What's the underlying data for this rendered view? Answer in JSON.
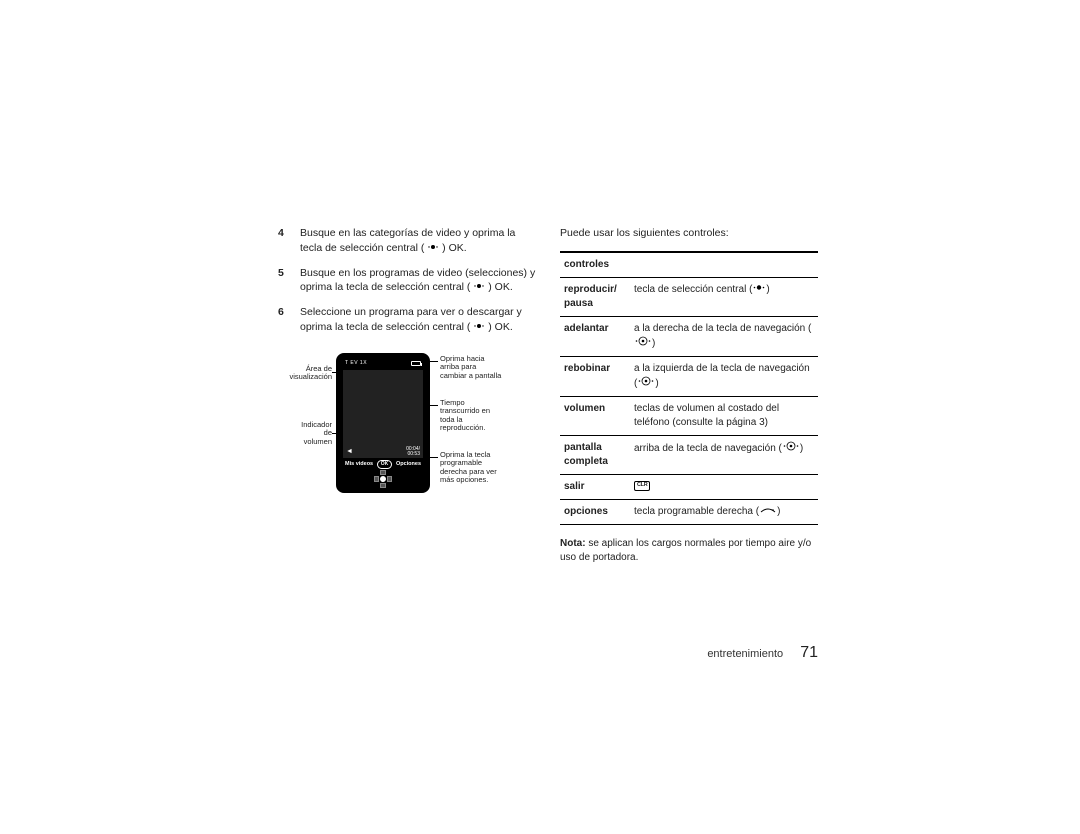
{
  "steps": [
    {
      "num": "4",
      "text_a": "Busque en las categorías de video y oprima la tecla de selección central (",
      "text_b": ") OK."
    },
    {
      "num": "5",
      "text_a": "Busque en los programas de video (selecciones) y oprima la tecla de selección central (",
      "text_b": ") OK."
    },
    {
      "num": "6",
      "text_a": "Seleccione un programa para ver o descargar y oprima la tecla de selección central (",
      "text_b": ") OK."
    }
  ],
  "diagram": {
    "status_left": "T EV 1X",
    "softkey_left": "Mis videos",
    "softkey_center": "OK",
    "softkey_right": "Opciones",
    "time_top": "00:04/",
    "time_bottom": "00:53",
    "callouts": {
      "area_viz": "Área de\nvisualización",
      "indicador_vol": "Indicador\nde\nvolumen",
      "oprima_arriba": "Oprima hacia\narriba para\ncambiar a pantalla",
      "tiempo": "Tiempo\ntranscurrido en\ntoda la\nreproducción.",
      "oprima_derecha": "Oprima la tecla\nprogramable\nderecha para ver\nmás opciones."
    }
  },
  "intro": "Puede usar los siguientes controles:",
  "table_header": "controles",
  "rows": [
    {
      "label": "reproducir/ pausa",
      "desc_a": "tecla de selección central (",
      "icon": "center",
      "desc_b": ")"
    },
    {
      "label": "adelantar",
      "desc_a": "a la derecha de la tecla de navegación (",
      "icon": "nav",
      "desc_b": ")"
    },
    {
      "label": "rebobinar",
      "desc_a": "a la izquierda de la tecla de navegación (",
      "icon": "nav",
      "desc_b": ")"
    },
    {
      "label": "volumen",
      "desc_a": "teclas de volumen al costado del teléfono (consulte la página 3)",
      "icon": "none",
      "desc_b": ""
    },
    {
      "label": "pantalla completa",
      "desc_a": "arriba de la tecla de navegación (",
      "icon": "nav",
      "desc_b": ")"
    },
    {
      "label": "salir",
      "desc_a": "",
      "icon": "clr",
      "desc_b": ""
    },
    {
      "label": "opciones",
      "desc_a": "tecla programable derecha (",
      "icon": "softkey",
      "desc_b": ")"
    }
  ],
  "note_bold": "Nota:",
  "note_text": " se aplican los cargos normales por tiempo aire y/o uso de portadora.",
  "footer_section": "entretenimiento",
  "footer_page": "71"
}
